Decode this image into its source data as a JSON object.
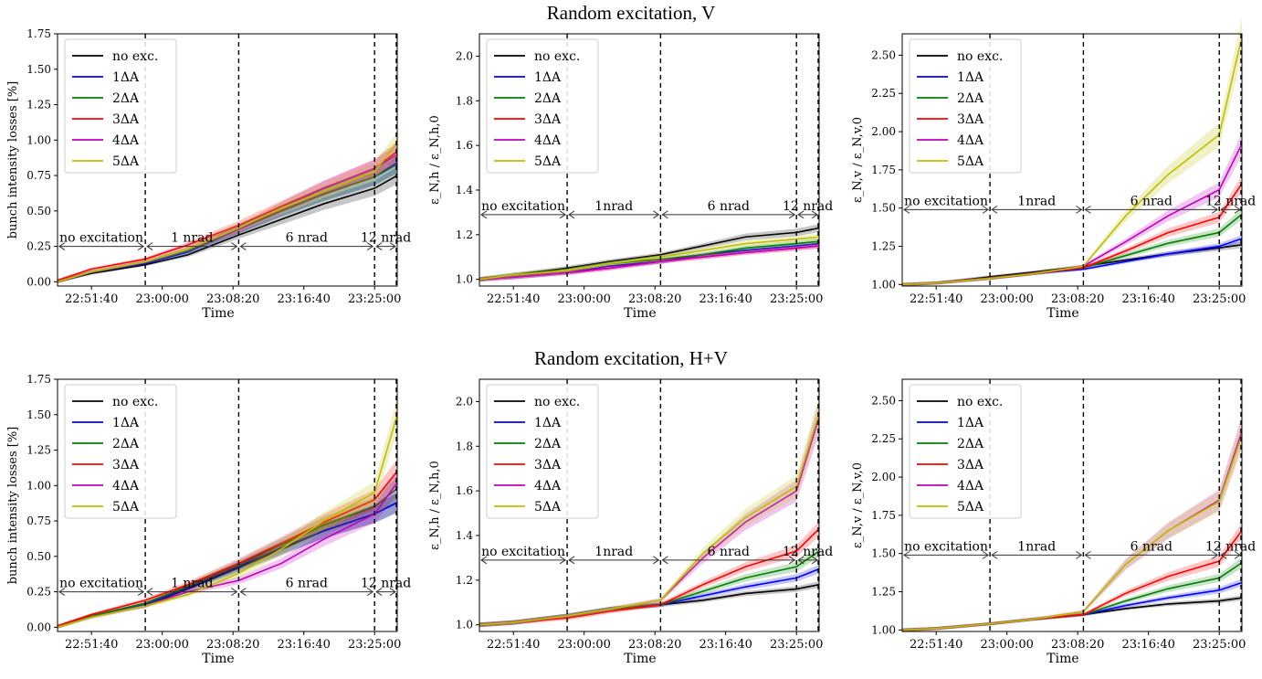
{
  "row_titles": [
    "Random excitation, V",
    "Random excitation, H+V"
  ],
  "legend": [
    "no exc.",
    "1ΔA",
    "2ΔA",
    "3ΔA",
    "4ΔA",
    "5ΔA"
  ],
  "series_colors": [
    "#000000",
    "#0000ff",
    "#008000",
    "#ff0000",
    "#c000c0",
    "#bfbf00"
  ],
  "xlabel": "Time",
  "x_ticks": [
    "22:51:40",
    "23:00:00",
    "23:08:20",
    "23:16:40",
    "23:25:00"
  ],
  "phase_labels": [
    "no excitation",
    "1 nrad",
    "6 nrad",
    "12 nrad"
  ],
  "chart_data": [
    {
      "id": "V-losses",
      "type": "line",
      "row": "Random excitation, V",
      "ylabel": "bunch intensity losses [%]",
      "ylim": [
        -0.03,
        1.75
      ],
      "yticks": [
        "0.00",
        "0.25",
        "0.50",
        "0.75",
        "1.00",
        "1.25",
        "1.50",
        "1.75"
      ],
      "phase_labels": [
        "no excitation",
        "1 nrad",
        "6 nrad",
        "12 nrad"
      ],
      "phase_y": 0.25,
      "x": [
        "22:47:40",
        "22:51:40",
        "22:58:00",
        "23:03:00",
        "23:09:00",
        "23:14:00",
        "23:19:00",
        "23:25:00",
        "23:27:40"
      ],
      "series": [
        {
          "name": "no exc.",
          "values": [
            0.0,
            0.06,
            0.12,
            0.19,
            0.33,
            0.44,
            0.55,
            0.66,
            0.75
          ]
        },
        {
          "name": "1ΔA",
          "values": [
            0.0,
            0.07,
            0.13,
            0.21,
            0.37,
            0.5,
            0.62,
            0.74,
            0.84
          ]
        },
        {
          "name": "2ΔA",
          "values": [
            0.0,
            0.07,
            0.14,
            0.22,
            0.37,
            0.5,
            0.62,
            0.74,
            0.83
          ]
        },
        {
          "name": "3ΔA",
          "values": [
            0.01,
            0.09,
            0.16,
            0.26,
            0.4,
            0.53,
            0.66,
            0.8,
            0.92
          ]
        },
        {
          "name": "4ΔA",
          "values": [
            0.0,
            0.07,
            0.14,
            0.23,
            0.37,
            0.52,
            0.66,
            0.8,
            0.9
          ]
        },
        {
          "name": "5ΔA",
          "values": [
            0.0,
            0.07,
            0.14,
            0.23,
            0.38,
            0.52,
            0.64,
            0.78,
            0.98
          ]
        }
      ]
    },
    {
      "id": "V-emit-h",
      "type": "line",
      "row": "Random excitation, V",
      "ylabel": "ε_N,h / ε_N,h,0",
      "ylim": [
        0.97,
        2.1
      ],
      "yticks": [
        "1.0",
        "1.2",
        "1.4",
        "1.6",
        "1.8",
        "2.0"
      ],
      "phase_labels": [
        "no excitation",
        "1nrad",
        "6 nrad",
        "12 nrad"
      ],
      "phase_y": 1.29,
      "x": [
        "22:47:40",
        "22:51:40",
        "22:58:00",
        "23:03:00",
        "23:09:00",
        "23:14:00",
        "23:19:00",
        "23:25:00",
        "23:27:40"
      ],
      "series": [
        {
          "name": "no exc.",
          "values": [
            1.0,
            1.02,
            1.05,
            1.08,
            1.11,
            1.15,
            1.19,
            1.21,
            1.23
          ]
        },
        {
          "name": "1ΔA",
          "values": [
            1.0,
            1.01,
            1.03,
            1.06,
            1.08,
            1.11,
            1.13,
            1.15,
            1.16
          ]
        },
        {
          "name": "2ΔA",
          "values": [
            1.0,
            1.02,
            1.04,
            1.07,
            1.09,
            1.11,
            1.14,
            1.16,
            1.17
          ]
        },
        {
          "name": "3ΔA",
          "values": [
            1.0,
            1.01,
            1.03,
            1.05,
            1.08,
            1.1,
            1.12,
            1.14,
            1.15
          ]
        },
        {
          "name": "4ΔA",
          "values": [
            1.0,
            1.01,
            1.03,
            1.05,
            1.08,
            1.1,
            1.12,
            1.14,
            1.15
          ]
        },
        {
          "name": "5ΔA",
          "values": [
            1.0,
            1.02,
            1.04,
            1.07,
            1.1,
            1.13,
            1.16,
            1.18,
            1.19
          ]
        }
      ]
    },
    {
      "id": "V-emit-v",
      "type": "line",
      "row": "Random excitation, V",
      "ylabel": "ε_N,v / ε_N,v,0",
      "ylim": [
        0.99,
        2.64
      ],
      "yticks": [
        "1.00",
        "1.25",
        "1.50",
        "1.75",
        "2.00",
        "2.25",
        "2.50"
      ],
      "phase_labels": [
        "no excitation",
        "1nrad",
        "6 nrad",
        "12 nrad"
      ],
      "phase_y": 1.49,
      "x": [
        "22:47:40",
        "22:51:40",
        "22:58:00",
        "23:03:00",
        "23:09:00",
        "23:14:00",
        "23:19:00",
        "23:25:00",
        "23:27:40"
      ],
      "series": [
        {
          "name": "no exc.",
          "values": [
            1.0,
            1.01,
            1.05,
            1.08,
            1.12,
            1.16,
            1.2,
            1.24,
            1.26
          ]
        },
        {
          "name": "1ΔA",
          "values": [
            1.0,
            1.01,
            1.04,
            1.07,
            1.1,
            1.15,
            1.2,
            1.25,
            1.3
          ]
        },
        {
          "name": "2ΔA",
          "values": [
            1.0,
            1.01,
            1.04,
            1.07,
            1.11,
            1.19,
            1.27,
            1.34,
            1.46
          ]
        },
        {
          "name": "3ΔA",
          "values": [
            1.0,
            1.01,
            1.04,
            1.07,
            1.11,
            1.22,
            1.34,
            1.44,
            1.66
          ]
        },
        {
          "name": "4ΔA",
          "values": [
            1.0,
            1.01,
            1.04,
            1.07,
            1.12,
            1.28,
            1.45,
            1.62,
            1.92
          ]
        },
        {
          "name": "5ΔA",
          "values": [
            1.0,
            1.01,
            1.04,
            1.07,
            1.12,
            1.45,
            1.72,
            1.98,
            2.62
          ]
        }
      ]
    },
    {
      "id": "HV-losses",
      "type": "line",
      "row": "Random excitation, H+V",
      "ylabel": "bunch intensity losses [%]",
      "ylim": [
        -0.03,
        1.75
      ],
      "yticks": [
        "0.00",
        "0.25",
        "0.50",
        "0.75",
        "1.00",
        "1.25",
        "1.50",
        "1.75"
      ],
      "phase_labels": [
        "no excitation",
        "1 nrad",
        "6 nrad",
        "12 nrad"
      ],
      "phase_y": 0.25,
      "x": [
        "22:47:40",
        "22:51:40",
        "22:58:00",
        "23:03:00",
        "23:09:00",
        "23:14:00",
        "23:19:00",
        "23:25:00",
        "23:27:40"
      ],
      "series": [
        {
          "name": "no exc.",
          "values": [
            0.0,
            0.08,
            0.15,
            0.27,
            0.42,
            0.55,
            0.68,
            0.8,
            0.88
          ]
        },
        {
          "name": "1ΔA",
          "values": [
            0.0,
            0.08,
            0.16,
            0.28,
            0.43,
            0.56,
            0.68,
            0.8,
            0.88
          ]
        },
        {
          "name": "2ΔA",
          "values": [
            0.0,
            0.08,
            0.17,
            0.29,
            0.44,
            0.58,
            0.72,
            0.85,
            0.98
          ]
        },
        {
          "name": "3ΔA",
          "values": [
            0.01,
            0.09,
            0.19,
            0.3,
            0.45,
            0.59,
            0.74,
            0.9,
            1.1
          ]
        },
        {
          "name": "4ΔA",
          "values": [
            0.0,
            0.07,
            0.15,
            0.25,
            0.33,
            0.45,
            0.62,
            0.8,
            1.02
          ]
        },
        {
          "name": "5ΔA",
          "values": [
            0.0,
            0.07,
            0.15,
            0.23,
            0.38,
            0.55,
            0.75,
            0.95,
            1.5
          ]
        }
      ]
    },
    {
      "id": "HV-emit-h",
      "type": "line",
      "row": "Random excitation, H+V",
      "ylabel": "ε_N,h / ε_N,h,0",
      "ylim": [
        0.97,
        2.1
      ],
      "yticks": [
        "1.0",
        "1.2",
        "1.4",
        "1.6",
        "1.8",
        "2.0"
      ],
      "phase_labels": [
        "no excitation",
        "1nrad",
        "6 nrad",
        "12 nrad"
      ],
      "phase_y": 1.29,
      "x": [
        "22:47:40",
        "22:51:40",
        "22:58:00",
        "23:03:00",
        "23:09:00",
        "23:14:00",
        "23:19:00",
        "23:25:00",
        "23:27:40"
      ],
      "series": [
        {
          "name": "no exc.",
          "values": [
            1.0,
            1.01,
            1.04,
            1.07,
            1.09,
            1.11,
            1.14,
            1.16,
            1.18
          ]
        },
        {
          "name": "1ΔA",
          "values": [
            1.0,
            1.01,
            1.04,
            1.07,
            1.09,
            1.13,
            1.17,
            1.21,
            1.25
          ]
        },
        {
          "name": "2ΔA",
          "values": [
            1.0,
            1.01,
            1.04,
            1.07,
            1.09,
            1.15,
            1.21,
            1.26,
            1.33
          ]
        },
        {
          "name": "3ΔA",
          "values": [
            1.0,
            1.01,
            1.03,
            1.06,
            1.09,
            1.18,
            1.26,
            1.33,
            1.43
          ]
        },
        {
          "name": "4ΔA",
          "values": [
            1.0,
            1.01,
            1.04,
            1.07,
            1.11,
            1.3,
            1.46,
            1.6,
            1.93
          ]
        },
        {
          "name": "5ΔA",
          "values": [
            1.0,
            1.01,
            1.04,
            1.07,
            1.11,
            1.32,
            1.48,
            1.62,
            1.95
          ]
        }
      ]
    },
    {
      "id": "HV-emit-v",
      "type": "line",
      "row": "Random excitation, H+V",
      "ylabel": "ε_N,v / ε_N,v,0",
      "ylim": [
        0.99,
        2.64
      ],
      "yticks": [
        "1.00",
        "1.25",
        "1.50",
        "1.75",
        "2.00",
        "2.25",
        "2.50"
      ],
      "phase_labels": [
        "no excitation",
        "1nrad",
        "6 nrad",
        "12 nrad"
      ],
      "phase_y": 1.49,
      "x": [
        "22:47:40",
        "22:51:40",
        "22:58:00",
        "23:03:00",
        "23:09:00",
        "23:14:00",
        "23:19:00",
        "23:25:00",
        "23:27:40"
      ],
      "series": [
        {
          "name": "no exc.",
          "values": [
            1.0,
            1.01,
            1.04,
            1.07,
            1.1,
            1.14,
            1.17,
            1.19,
            1.21
          ]
        },
        {
          "name": "1ΔA",
          "values": [
            1.0,
            1.01,
            1.04,
            1.07,
            1.1,
            1.16,
            1.21,
            1.26,
            1.31
          ]
        },
        {
          "name": "2ΔA",
          "values": [
            1.0,
            1.01,
            1.04,
            1.07,
            1.1,
            1.19,
            1.27,
            1.34,
            1.44
          ]
        },
        {
          "name": "3ΔA",
          "values": [
            1.0,
            1.01,
            1.04,
            1.07,
            1.1,
            1.24,
            1.35,
            1.45,
            1.65
          ]
        },
        {
          "name": "4ΔA",
          "values": [
            1.0,
            1.01,
            1.04,
            1.07,
            1.12,
            1.43,
            1.65,
            1.85,
            2.3
          ]
        },
        {
          "name": "5ΔA",
          "values": [
            1.0,
            1.01,
            1.04,
            1.07,
            1.12,
            1.43,
            1.65,
            1.84,
            2.27
          ]
        }
      ]
    }
  ]
}
